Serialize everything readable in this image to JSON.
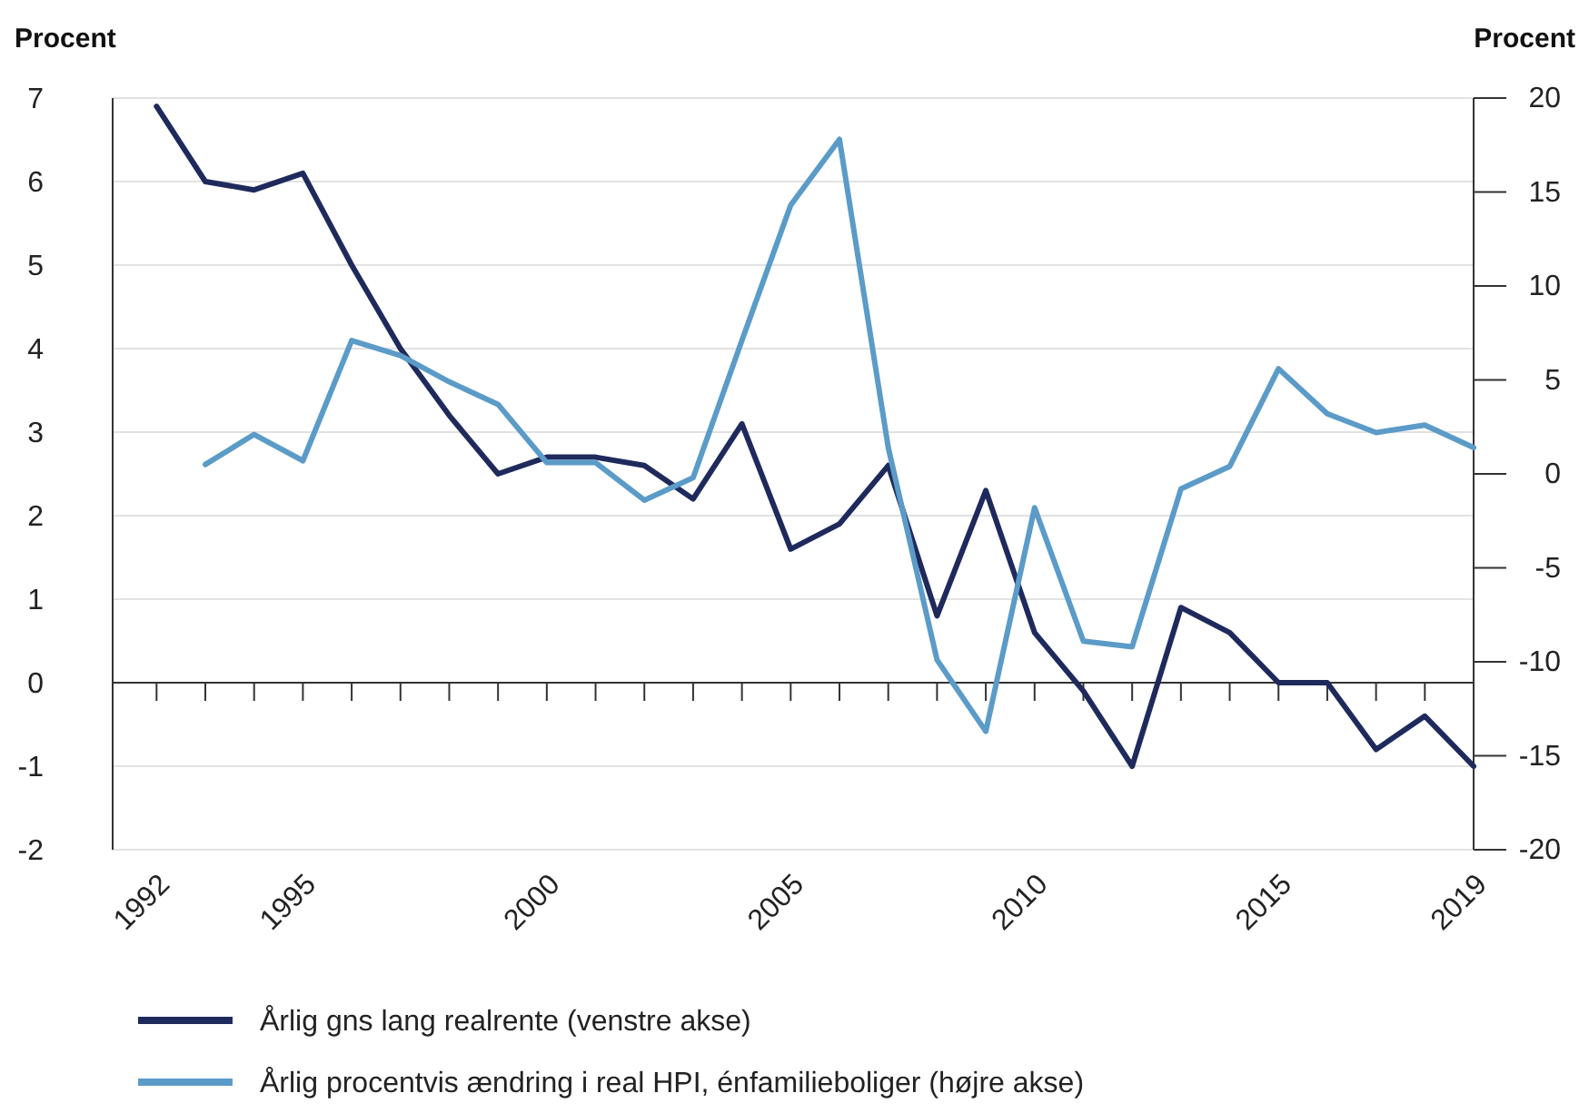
{
  "chart_data": {
    "type": "line",
    "ylabel": "Procent",
    "y2label": "Procent",
    "x": [
      1992,
      1993,
      1994,
      1995,
      1996,
      1997,
      1998,
      1999,
      2000,
      2001,
      2002,
      2003,
      2004,
      2005,
      2006,
      2007,
      2008,
      2009,
      2010,
      2011,
      2012,
      2013,
      2014,
      2015,
      2016,
      2017,
      2018,
      2019
    ],
    "xlim": [
      1991.1,
      2019
    ],
    "xticks": [
      1992,
      {
        "value": 1993,
        "label": null
      },
      {
        "value": 1994,
        "label": null
      },
      1995,
      {
        "value": 1996,
        "label": null
      },
      {
        "value": 1997,
        "label": null
      },
      {
        "value": 1998,
        "label": null
      },
      {
        "value": 1999,
        "label": null
      },
      2000,
      {
        "value": 2001,
        "label": null
      },
      {
        "value": 2002,
        "label": null
      },
      {
        "value": 2003,
        "label": null
      },
      {
        "value": 2004,
        "label": null
      },
      2005,
      {
        "value": 2006,
        "label": null
      },
      {
        "value": 2007,
        "label": null
      },
      {
        "value": 2008,
        "label": null
      },
      {
        "value": 2009,
        "label": null
      },
      2010,
      {
        "value": 2011,
        "label": null
      },
      {
        "value": 2012,
        "label": null
      },
      {
        "value": 2013,
        "label": null
      },
      {
        "value": 2014,
        "label": null
      },
      2015,
      {
        "value": 2016,
        "label": null
      },
      {
        "value": 2017,
        "label": null
      },
      {
        "value": 2018,
        "label": null
      },
      2019
    ],
    "ylim": [
      -2,
      7
    ],
    "yticks": [
      -2,
      -1,
      0,
      1,
      2,
      3,
      4,
      5,
      6,
      7
    ],
    "y2lim": [
      -20,
      20
    ],
    "y2ticks": [
      -20,
      -15,
      -10,
      -5,
      0,
      5,
      10,
      15,
      20
    ],
    "grid": "y",
    "legend": "bottom",
    "marker": "none",
    "line_style": "solid",
    "series": [
      {
        "name": "Årlig gns lang realrente (venstre akse)",
        "color": "#1f2a5c",
        "values": [
          6.9,
          6.0,
          5.9,
          6.1,
          5.0,
          4.0,
          3.2,
          2.5,
          2.7,
          2.7,
          2.6,
          2.2,
          3.1,
          1.6,
          1.9,
          2.6,
          0.8,
          2.3,
          0.6,
          -0.1,
          -1.0,
          0.9,
          0.6,
          0.0,
          0.0,
          -0.8,
          -0.4,
          -1.0
        ]
      },
      {
        "name": "Årlig procentvis ændring i real HPI, énfamilieboliger (højre akse)",
        "color": "#5b9bc8",
        "axis": "y2",
        "values": [
          null,
          0.5,
          2.1,
          0.7,
          7.1,
          6.3,
          4.9,
          3.7,
          0.6,
          0.6,
          -1.4,
          -0.2,
          7.1,
          14.3,
          17.8,
          1.4,
          -9.9,
          -13.7,
          -1.8,
          -8.9,
          -9.2,
          -0.8,
          0.4,
          5.6,
          3.2,
          2.2,
          2.6,
          1.4
        ]
      }
    ]
  }
}
